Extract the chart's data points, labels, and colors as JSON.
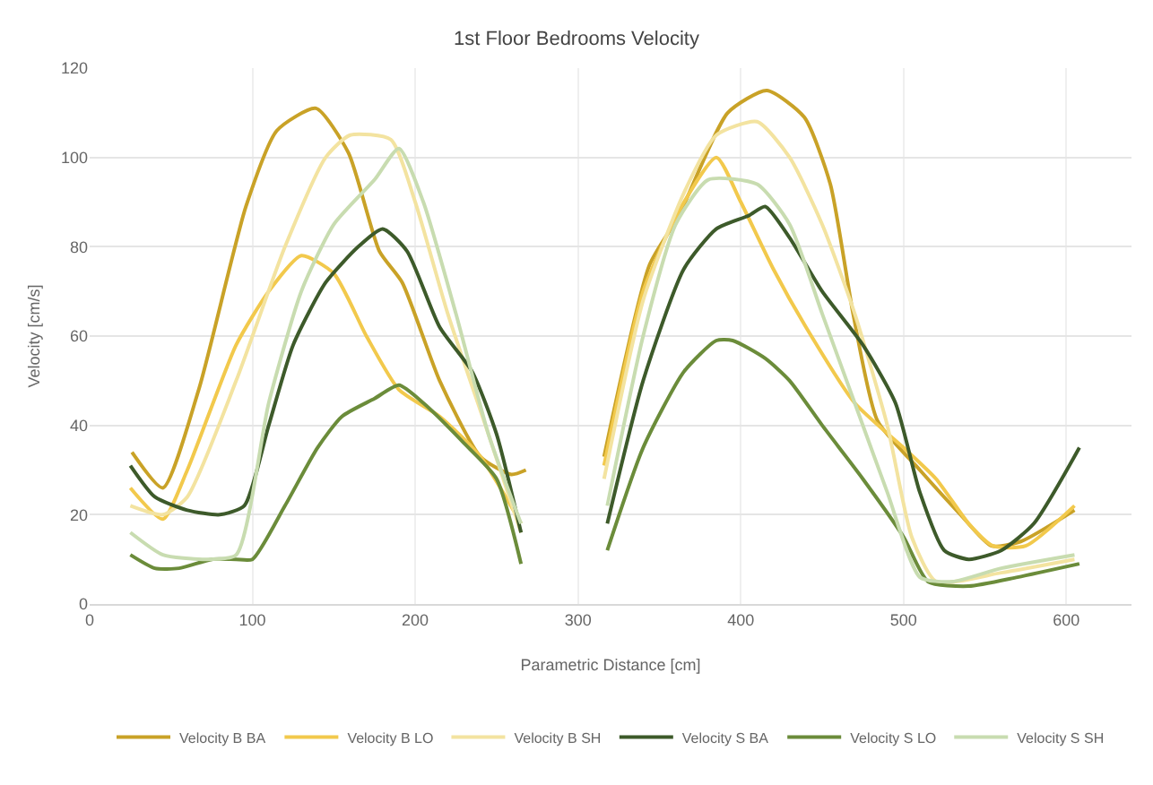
{
  "chart_data": {
    "type": "line",
    "title": "1st Floor Bedrooms Velocity",
    "xlabel": "Parametric Distance [cm]",
    "ylabel": "Velocity [cm/s]",
    "xlim": [
      0,
      640
    ],
    "xticks": [
      0,
      100,
      200,
      300,
      400,
      500,
      600
    ],
    "ylim": [
      0,
      120
    ],
    "yticks": [
      0,
      20,
      40,
      60,
      80,
      100,
      120
    ],
    "grid": true,
    "legend": "bottom",
    "marker": "none",
    "line_style": "solid",
    "series": [
      {
        "name": "Velocity B BA",
        "color": "#c9a227",
        "x": [
          26,
          45,
          67,
          96,
          115,
          139,
          159,
          178,
          192,
          215,
          240,
          259,
          268,
          290,
          316,
          344,
          362,
          392,
          416,
          439,
          455,
          469,
          484,
          510,
          535,
          554,
          572,
          605
        ],
        "values": [
          34,
          26,
          48,
          89,
          106,
          111,
          101,
          79,
          72,
          50,
          33,
          29,
          30,
          null,
          33,
          76,
          87,
          110,
          115,
          109,
          94,
          65,
          41,
          30,
          20,
          13,
          14,
          21
        ]
      },
      {
        "name": "Velocity B LO",
        "color": "#f2c94c",
        "x": [
          25,
          45,
          60,
          90,
          110,
          130,
          150,
          170,
          190,
          215,
          240,
          265,
          290,
          316,
          340,
          362,
          385,
          400,
          420,
          440,
          470,
          500,
          520,
          540,
          555,
          575,
          605
        ],
        "values": [
          26,
          19,
          30,
          58,
          70,
          78,
          74,
          60,
          48,
          42,
          33,
          18,
          null,
          31,
          70,
          88,
          100,
          90,
          75,
          62,
          45,
          35,
          28,
          18,
          13,
          13,
          22
        ]
      },
      {
        "name": "Velocity B SH",
        "color": "#f3e3a0",
        "x": [
          25,
          45,
          60,
          90,
          120,
          145,
          160,
          185,
          200,
          220,
          245,
          265,
          290,
          316,
          340,
          365,
          385,
          410,
          430,
          450,
          470,
          490,
          505,
          520,
          560,
          605
        ],
        "values": [
          22,
          20,
          24,
          50,
          80,
          100,
          105,
          104,
          90,
          65,
          38,
          16,
          null,
          28,
          68,
          92,
          105,
          108,
          100,
          85,
          65,
          40,
          15,
          5,
          7,
          10
        ]
      },
      {
        "name": "Velocity S BA",
        "color": "#3d5a2a",
        "x": [
          25,
          40,
          60,
          80,
          95,
          110,
          125,
          145,
          165,
          180,
          195,
          215,
          235,
          250,
          265,
          290,
          318,
          340,
          365,
          385,
          405,
          415,
          430,
          450,
          475,
          495,
          510,
          525,
          540,
          560,
          580,
          608
        ],
        "values": [
          31,
          24,
          21,
          20,
          22,
          40,
          58,
          72,
          80,
          84,
          79,
          62,
          52,
          38,
          16,
          null,
          18,
          50,
          75,
          84,
          87,
          89,
          82,
          70,
          58,
          45,
          25,
          12,
          10,
          12,
          18,
          35
        ]
      },
      {
        "name": "Velocity S LO",
        "color": "#6b8c3a",
        "x": [
          25,
          40,
          55,
          75,
          90,
          100,
          120,
          140,
          155,
          175,
          190,
          205,
          230,
          250,
          265,
          290,
          318,
          340,
          365,
          385,
          395,
          415,
          430,
          450,
          475,
          500,
          515,
          540,
          570,
          608
        ],
        "values": [
          11,
          8,
          8,
          10,
          10,
          10,
          22,
          35,
          42,
          46,
          49,
          45,
          36,
          28,
          9,
          null,
          12,
          35,
          52,
          59,
          59,
          55,
          50,
          40,
          28,
          15,
          5,
          4,
          6,
          9
        ]
      },
      {
        "name": "Velocity S SH",
        "color": "#c8dcb0",
        "x": [
          25,
          45,
          70,
          90,
          110,
          130,
          150,
          175,
          190,
          205,
          225,
          245,
          265,
          290,
          318,
          340,
          360,
          380,
          410,
          430,
          450,
          470,
          490,
          510,
          530,
          560,
          605
        ],
        "values": [
          16,
          11,
          10,
          11,
          45,
          70,
          85,
          95,
          102,
          90,
          65,
          38,
          18,
          null,
          22,
          60,
          85,
          95,
          94,
          85,
          65,
          45,
          25,
          6,
          5,
          8,
          11
        ]
      }
    ]
  }
}
